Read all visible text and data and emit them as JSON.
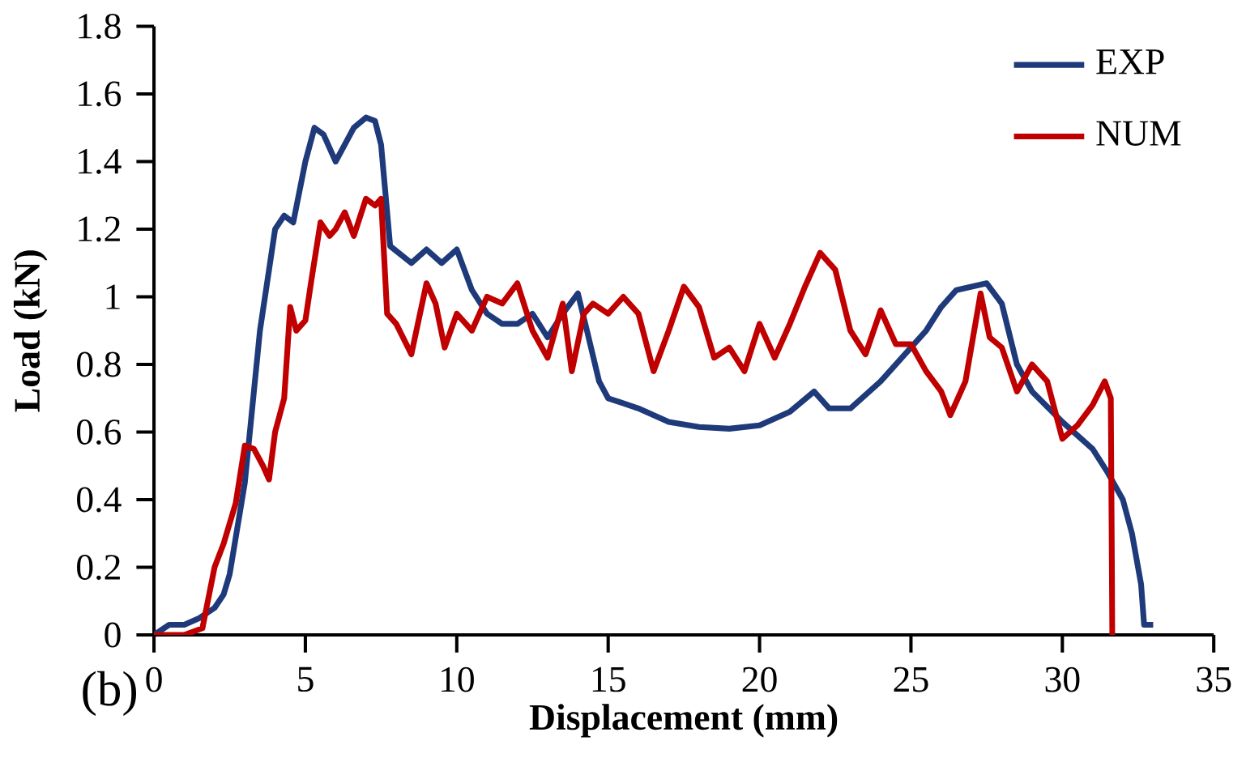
{
  "chart_data": {
    "type": "line",
    "xlabel": "Displacement (mm)",
    "ylabel": "Load (kN)",
    "annotations": [
      "(b)"
    ],
    "xlim": [
      0,
      35
    ],
    "ylim": [
      0,
      1.8
    ],
    "xticks": [
      0,
      5,
      10,
      15,
      20,
      25,
      30,
      35
    ],
    "yticks": [
      0,
      0.2,
      0.4,
      0.6,
      0.8,
      1,
      1.2,
      1.4,
      1.6,
      1.8
    ],
    "grid": false,
    "legend": "top right",
    "marker": "none",
    "line_style": "solid",
    "series": [
      {
        "name": "EXP",
        "color": "#1f3a7a",
        "x": [
          0,
          0.5,
          1,
          1.5,
          2,
          2.3,
          2.5,
          3,
          3.5,
          4,
          4.3,
          4.6,
          5,
          5.3,
          5.6,
          6,
          6.3,
          6.6,
          7,
          7.3,
          7.5,
          7.8,
          8.5,
          9,
          9.5,
          10,
          10.5,
          11,
          11.5,
          12,
          12.5,
          13,
          13.5,
          14,
          14.3,
          14.7,
          15,
          16,
          17,
          18,
          19,
          20,
          21,
          21.8,
          22.3,
          23,
          24,
          25,
          25.5,
          26,
          26.5,
          27,
          27.5,
          28,
          28.5,
          29,
          30,
          31,
          31.5,
          32,
          32.3,
          32.6,
          32.7,
          33
        ],
        "values": [
          0,
          0.03,
          0.03,
          0.05,
          0.08,
          0.12,
          0.18,
          0.45,
          0.9,
          1.2,
          1.24,
          1.22,
          1.4,
          1.5,
          1.48,
          1.4,
          1.45,
          1.5,
          1.53,
          1.52,
          1.45,
          1.15,
          1.1,
          1.14,
          1.1,
          1.14,
          1.02,
          0.95,
          0.92,
          0.92,
          0.95,
          0.88,
          0.95,
          1.01,
          0.9,
          0.75,
          0.7,
          0.67,
          0.63,
          0.615,
          0.61,
          0.62,
          0.66,
          0.72,
          0.67,
          0.67,
          0.75,
          0.85,
          0.9,
          0.97,
          1.02,
          1.03,
          1.04,
          0.98,
          0.8,
          0.72,
          0.63,
          0.55,
          0.48,
          0.4,
          0.3,
          0.15,
          0.03,
          0.03
        ]
      },
      {
        "name": "NUM",
        "color": "#c00000",
        "x": [
          0,
          1,
          1.6,
          2,
          2.3,
          2.7,
          3,
          3.3,
          3.6,
          3.8,
          4,
          4.3,
          4.5,
          4.7,
          5,
          5.2,
          5.5,
          5.8,
          6,
          6.3,
          6.6,
          7,
          7.3,
          7.5,
          7.7,
          8,
          8.5,
          9,
          9.3,
          9.6,
          10,
          10.3,
          10.5,
          11,
          11.5,
          12,
          12.5,
          13,
          13.5,
          13.8,
          14.2,
          14.5,
          15,
          15.5,
          16,
          16.5,
          17,
          17.5,
          18,
          18.5,
          19,
          19.5,
          20,
          20.5,
          21,
          21.5,
          22,
          22.5,
          23,
          23.5,
          24,
          24.5,
          25,
          25.5,
          26,
          26.3,
          26.8,
          27.3,
          27.6,
          28,
          28.5,
          29,
          29.5,
          30,
          30.5,
          31,
          31.4,
          31.6,
          31.65
        ],
        "values": [
          0,
          0,
          0.02,
          0.2,
          0.27,
          0.39,
          0.56,
          0.55,
          0.5,
          0.46,
          0.6,
          0.7,
          0.97,
          0.9,
          0.93,
          1.05,
          1.22,
          1.18,
          1.2,
          1.25,
          1.18,
          1.29,
          1.27,
          1.29,
          0.95,
          0.92,
          0.83,
          1.04,
          0.98,
          0.85,
          0.95,
          0.92,
          0.9,
          1.0,
          0.98,
          1.04,
          0.9,
          0.82,
          0.98,
          0.78,
          0.95,
          0.98,
          0.95,
          1.0,
          0.95,
          0.78,
          0.9,
          1.03,
          0.97,
          0.82,
          0.85,
          0.78,
          0.92,
          0.82,
          0.92,
          1.03,
          1.13,
          1.08,
          0.9,
          0.83,
          0.96,
          0.86,
          0.86,
          0.78,
          0.72,
          0.65,
          0.75,
          1.01,
          0.88,
          0.85,
          0.72,
          0.8,
          0.75,
          0.58,
          0.62,
          0.68,
          0.75,
          0.7,
          0
        ]
      }
    ]
  }
}
